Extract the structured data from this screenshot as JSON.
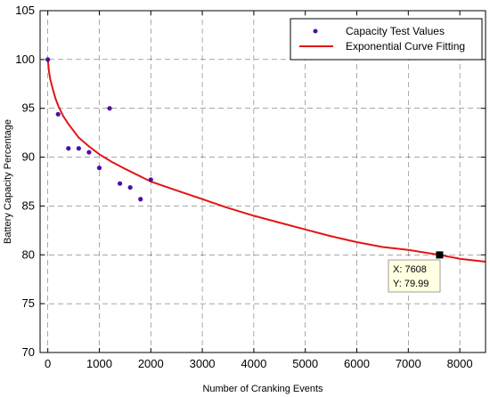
{
  "chart_data": {
    "type": "scatter",
    "xlabel": "Number of Cranking Events",
    "ylabel": "Battery Capacity Percentage",
    "xlim": [
      -150,
      8500
    ],
    "ylim": [
      70,
      105
    ],
    "xticks": [
      0,
      1000,
      2000,
      3000,
      4000,
      5000,
      6000,
      7000,
      8000
    ],
    "yticks": [
      70,
      75,
      80,
      85,
      90,
      95,
      100,
      105
    ],
    "grid": true,
    "legend_position": "top-right",
    "series": [
      {
        "name": "Capacity Test Values",
        "kind": "scatter",
        "color": "#4b0fa6",
        "x": [
          0,
          200,
          400,
          600,
          800,
          1000,
          1200,
          1400,
          1600,
          1800,
          2000
        ],
        "y": [
          100.0,
          94.4,
          90.9,
          90.9,
          90.5,
          88.9,
          95.0,
          87.3,
          86.9,
          85.7,
          87.7
        ]
      },
      {
        "name": "Exponential Curve Fitting",
        "kind": "line",
        "color": "#e31414",
        "x": [
          0,
          25,
          50,
          100,
          150,
          200,
          300,
          400,
          600,
          800,
          1000,
          1250,
          1500,
          2000,
          2500,
          3000,
          3500,
          4000,
          4500,
          5000,
          5500,
          6000,
          6500,
          7000,
          7608,
          8000,
          8500
        ],
        "y": [
          100.0,
          98.7,
          97.9,
          96.9,
          96.0,
          95.3,
          94.2,
          93.4,
          92.0,
          91.1,
          90.3,
          89.5,
          88.8,
          87.5,
          86.6,
          85.7,
          84.8,
          84.0,
          83.3,
          82.6,
          81.9,
          81.3,
          80.8,
          80.5,
          79.99,
          79.6,
          79.3
        ]
      }
    ],
    "datatip": {
      "x": 7608,
      "y": 79.99,
      "x_text": "X: 7608",
      "y_text": "Y: 79.99"
    }
  }
}
